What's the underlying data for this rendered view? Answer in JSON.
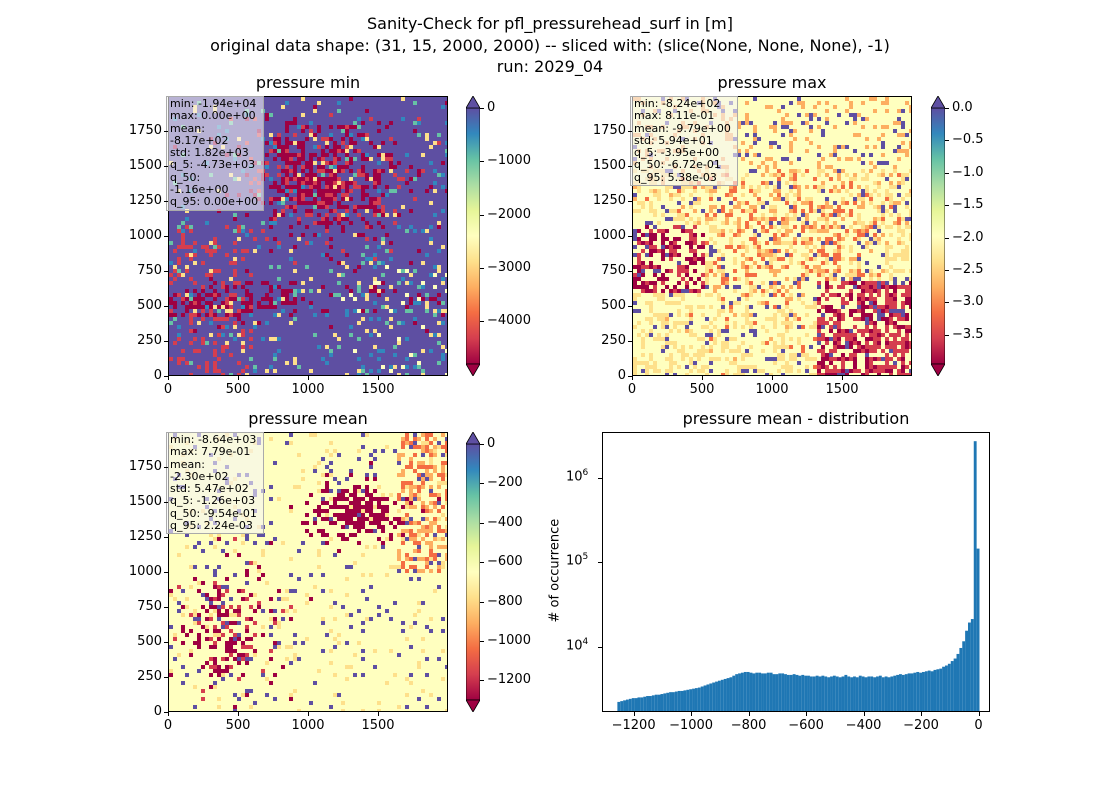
{
  "suptitle": {
    "line1": "Sanity-Check for pfl_pressurehead_surf in [m]",
    "line2": "original data shape: (31, 15, 2000, 2000) -- sliced with: (slice(None, None, None), -1)",
    "line3": "run: 2029_04"
  },
  "colors": {
    "spectral": [
      "#9e0142",
      "#d53e4f",
      "#f46d43",
      "#fdae61",
      "#fee08b",
      "#ffffbf",
      "#e6f598",
      "#abdda4",
      "#66c2a5",
      "#3288bd",
      "#5e4fa2"
    ],
    "hist_bar": "#1f77b4"
  },
  "panels": {
    "pmin": {
      "title": "pressure min",
      "xticks": [
        "0",
        "500",
        "1000",
        "1500"
      ],
      "yticks": [
        "0",
        "250",
        "500",
        "750",
        "1000",
        "1250",
        "1500",
        "1750"
      ],
      "cbar_ticks": [
        "0",
        "−1000",
        "−2000",
        "−3000",
        "−4000"
      ],
      "cbar_range": [
        -4800,
        0
      ],
      "stats": [
        "min: -1.94e+04",
        "max: 0.00e+00",
        "mean: -8.17e+02",
        "std: 1.82e+03",
        "q_5: -4.73e+03",
        "q_50: -1.16e+00",
        "q_95: 0.00e+00"
      ]
    },
    "pmax": {
      "title": "pressure max",
      "xticks": [
        "0",
        "500",
        "1000",
        "1500"
      ],
      "yticks": [
        "0",
        "250",
        "500",
        "750",
        "1000",
        "1250",
        "1500",
        "1750"
      ],
      "cbar_ticks": [
        "0.0",
        "−0.5",
        "−1.0",
        "−1.5",
        "−2.0",
        "−2.5",
        "−3.0",
        "−3.5"
      ],
      "cbar_range": [
        -3.95,
        0
      ],
      "stats": [
        "min: -8.24e+02",
        "max: 8.11e-01",
        "mean: -9.79e+00",
        "std: 5.94e+01",
        "q_5: -3.95e+00",
        "q_50: -6.72e-01",
        "q_95: 5.38e-03"
      ]
    },
    "pmean": {
      "title": "pressure mean",
      "xticks": [
        "0",
        "500",
        "1000",
        "1500"
      ],
      "yticks": [
        "0",
        "250",
        "500",
        "750",
        "1000",
        "1250",
        "1500",
        "1750"
      ],
      "cbar_ticks": [
        "0",
        "−200",
        "−400",
        "−600",
        "−800",
        "−1000",
        "−1200"
      ],
      "cbar_range": [
        -1300,
        0
      ],
      "stats": [
        "min: -8.64e+03",
        "max: 7.79e-01",
        "mean: -2.30e+02",
        "std: 5.47e+02",
        "q_5: -1.26e+03",
        "q_50: -9.54e-01",
        "q_95: 2.24e-03"
      ]
    },
    "hist": {
      "title": "pressure mean - distribution",
      "ylabel": "# of occurrence",
      "xticks": [
        "−1200",
        "−1000",
        "−800",
        "−600",
        "−400",
        "−200",
        "0"
      ],
      "yticks": [
        "10^4",
        "10^5",
        "10^6"
      ]
    }
  },
  "chart_data": [
    {
      "type": "heatmap",
      "title": "pressure min",
      "xlim": [
        0,
        2000
      ],
      "ylim": [
        0,
        2000
      ],
      "x_ticks": [
        0,
        500,
        1000,
        1500
      ],
      "y_ticks": [
        0,
        250,
        500,
        750,
        1000,
        1250,
        1500,
        1750
      ],
      "colormap": "Spectral",
      "colorbar_range": [
        -4800,
        0
      ],
      "colorbar_ticks": [
        0,
        -1000,
        -2000,
        -3000,
        -4000
      ],
      "colorbar_extend": "both"
    },
    {
      "type": "heatmap",
      "title": "pressure max",
      "xlim": [
        0,
        2000
      ],
      "ylim": [
        0,
        2000
      ],
      "x_ticks": [
        0,
        500,
        1000,
        1500
      ],
      "y_ticks": [
        0,
        250,
        500,
        750,
        1000,
        1250,
        1500,
        1750
      ],
      "colormap": "Spectral",
      "colorbar_range": [
        -3.95,
        0
      ],
      "colorbar_ticks": [
        0.0,
        -0.5,
        -1.0,
        -1.5,
        -2.0,
        -2.5,
        -3.0,
        -3.5
      ],
      "colorbar_extend": "both"
    },
    {
      "type": "heatmap",
      "title": "pressure mean",
      "xlim": [
        0,
        2000
      ],
      "ylim": [
        0,
        2000
      ],
      "x_ticks": [
        0,
        500,
        1000,
        1500
      ],
      "y_ticks": [
        0,
        250,
        500,
        750,
        1000,
        1250,
        1500,
        1750
      ],
      "colormap": "Spectral",
      "colorbar_range": [
        -1300,
        0
      ],
      "colorbar_ticks": [
        0,
        -200,
        -400,
        -600,
        -800,
        -1000,
        -1200
      ],
      "colorbar_extend": "both"
    },
    {
      "type": "bar",
      "title": "pressure mean - distribution",
      "ylabel": "# of occurrence",
      "xlim": [
        -1310,
        40
      ],
      "y_scale": "log",
      "ylim": [
        1700,
        3500000
      ],
      "bin_width": 10,
      "x": [
        -1250,
        -1240,
        -1230,
        -1220,
        -1210,
        -1200,
        -1190,
        -1180,
        -1170,
        -1160,
        -1150,
        -1140,
        -1130,
        -1120,
        -1110,
        -1100,
        -1090,
        -1080,
        -1070,
        -1060,
        -1050,
        -1040,
        -1030,
        -1020,
        -1010,
        -1000,
        -990,
        -980,
        -970,
        -960,
        -950,
        -940,
        -930,
        -920,
        -910,
        -900,
        -890,
        -880,
        -870,
        -860,
        -850,
        -840,
        -830,
        -820,
        -810,
        -800,
        -790,
        -780,
        -770,
        -760,
        -750,
        -740,
        -730,
        -720,
        -710,
        -700,
        -690,
        -680,
        -670,
        -660,
        -650,
        -640,
        -630,
        -620,
        -610,
        -600,
        -590,
        -580,
        -570,
        -560,
        -550,
        -540,
        -530,
        -520,
        -510,
        -500,
        -490,
        -480,
        -470,
        -460,
        -450,
        -440,
        -430,
        -420,
        -410,
        -400,
        -390,
        -380,
        -370,
        -360,
        -350,
        -340,
        -330,
        -320,
        -310,
        -300,
        -290,
        -280,
        -270,
        -260,
        -250,
        -240,
        -230,
        -220,
        -210,
        -200,
        -190,
        -180,
        -170,
        -160,
        -150,
        -140,
        -130,
        -120,
        -110,
        -100,
        -90,
        -80,
        -70,
        -60,
        -50,
        -40,
        -30,
        -20,
        -10,
        0
      ],
      "values": [
        2300,
        2350,
        2400,
        2450,
        2500,
        2550,
        2550,
        2600,
        2600,
        2650,
        2700,
        2700,
        2750,
        2800,
        2800,
        2850,
        2900,
        2950,
        3000,
        3000,
        3050,
        3100,
        3100,
        3150,
        3200,
        3250,
        3300,
        3350,
        3400,
        3500,
        3600,
        3700,
        3800,
        3900,
        4000,
        4100,
        4200,
        4300,
        4400,
        4500,
        4700,
        4900,
        5000,
        5100,
        5200,
        5200,
        5100,
        5000,
        5100,
        5100,
        5000,
        5000,
        5100,
        5100,
        4900,
        4900,
        5000,
        5000,
        4900,
        4800,
        4800,
        4900,
        4800,
        4700,
        4800,
        4700,
        4700,
        4600,
        4600,
        4700,
        4600,
        4700,
        4600,
        4500,
        4600,
        4700,
        4600,
        4500,
        4600,
        4800,
        4600,
        4500,
        4600,
        4500,
        4700,
        4600,
        4500,
        4600,
        4600,
        4500,
        4600,
        4700,
        4500,
        4600,
        4500,
        4600,
        4700,
        4800,
        4900,
        4800,
        4900,
        5000,
        5000,
        5100,
        5200,
        5100,
        5200,
        5300,
        5400,
        5300,
        5500,
        5600,
        5700,
        6000,
        6200,
        6500,
        7000,
        7500,
        8500,
        10000,
        12000,
        16000,
        20000,
        22000,
        2800000,
        150000
      ]
    }
  ]
}
